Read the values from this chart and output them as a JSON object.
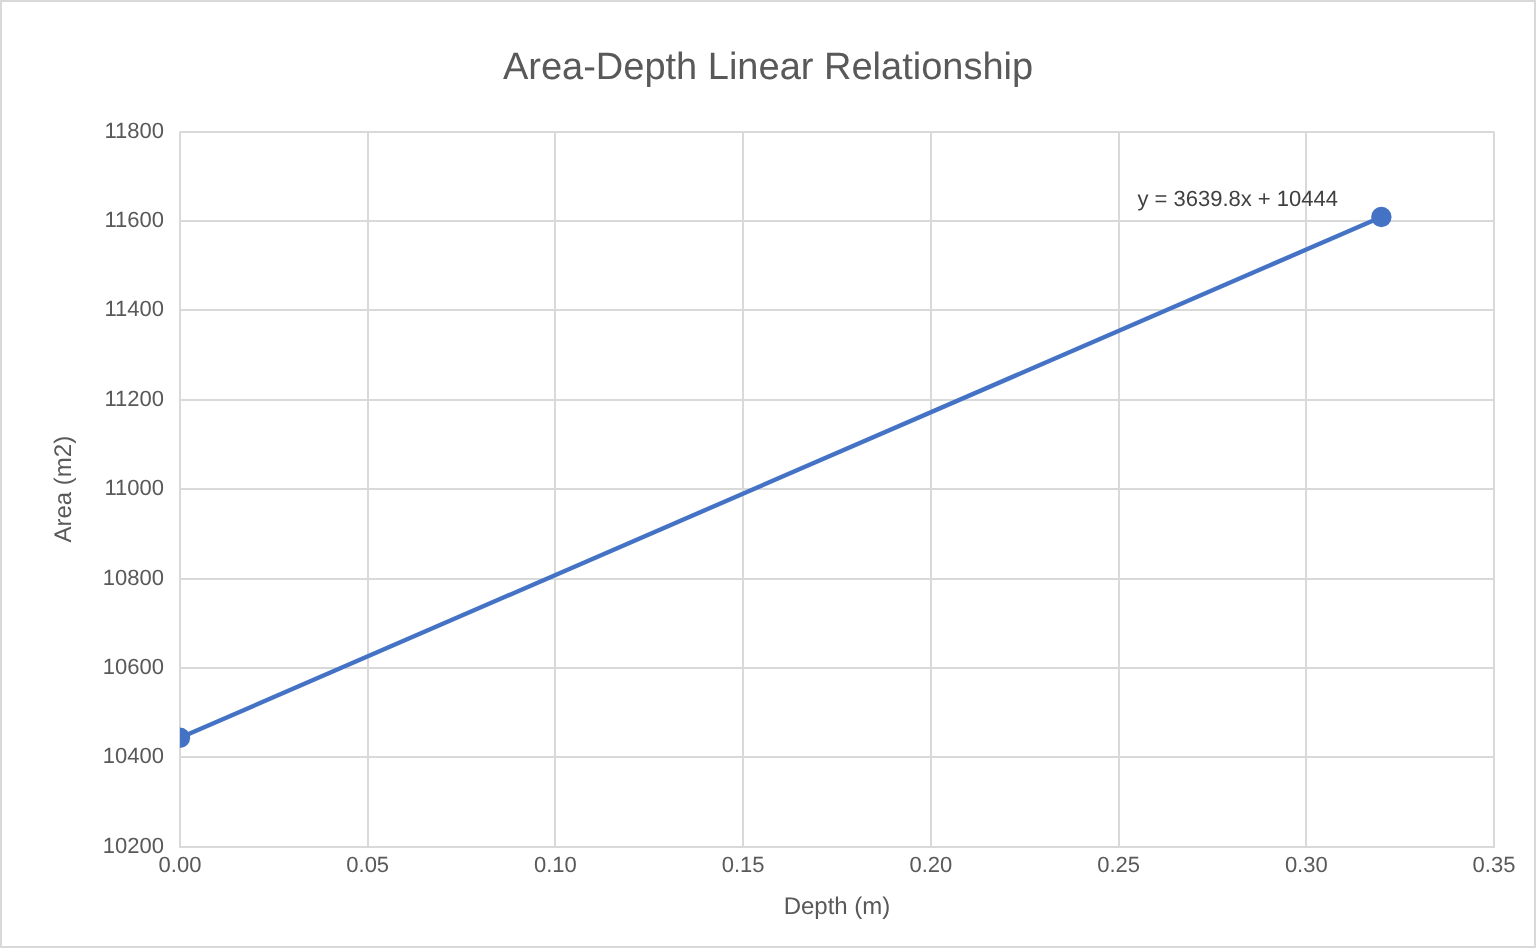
{
  "chart_data": {
    "type": "line",
    "title": "Area-Depth Linear Relationship",
    "xlabel": "Depth (m)",
    "ylabel": "Area (m2)",
    "x": [
      0,
      0.32
    ],
    "series": [
      {
        "color": "#4472c4",
        "values": [
          10444,
          11609
        ]
      }
    ],
    "xlim": [
      0,
      0.35
    ],
    "xticks": [
      {
        "value": 0,
        "label": "0.00"
      },
      {
        "value": 0.05,
        "label": "0.05"
      },
      {
        "value": 0.1,
        "label": "0.10"
      },
      {
        "value": 0.15,
        "label": "0.15"
      },
      {
        "value": 0.2,
        "label": "0.20"
      },
      {
        "value": 0.25,
        "label": "0.25"
      },
      {
        "value": 0.3,
        "label": "0.30"
      },
      {
        "value": 0.35,
        "label": "0.35"
      }
    ],
    "ylim": [
      10200,
      11800
    ],
    "yticks": [
      10200,
      10400,
      10600,
      10800,
      11000,
      11200,
      11400,
      11600,
      11800
    ],
    "annotations": [
      "y = 3639.8x + 10444"
    ],
    "grid": true,
    "legend": false,
    "marker": "circle",
    "line_style": "solid"
  }
}
